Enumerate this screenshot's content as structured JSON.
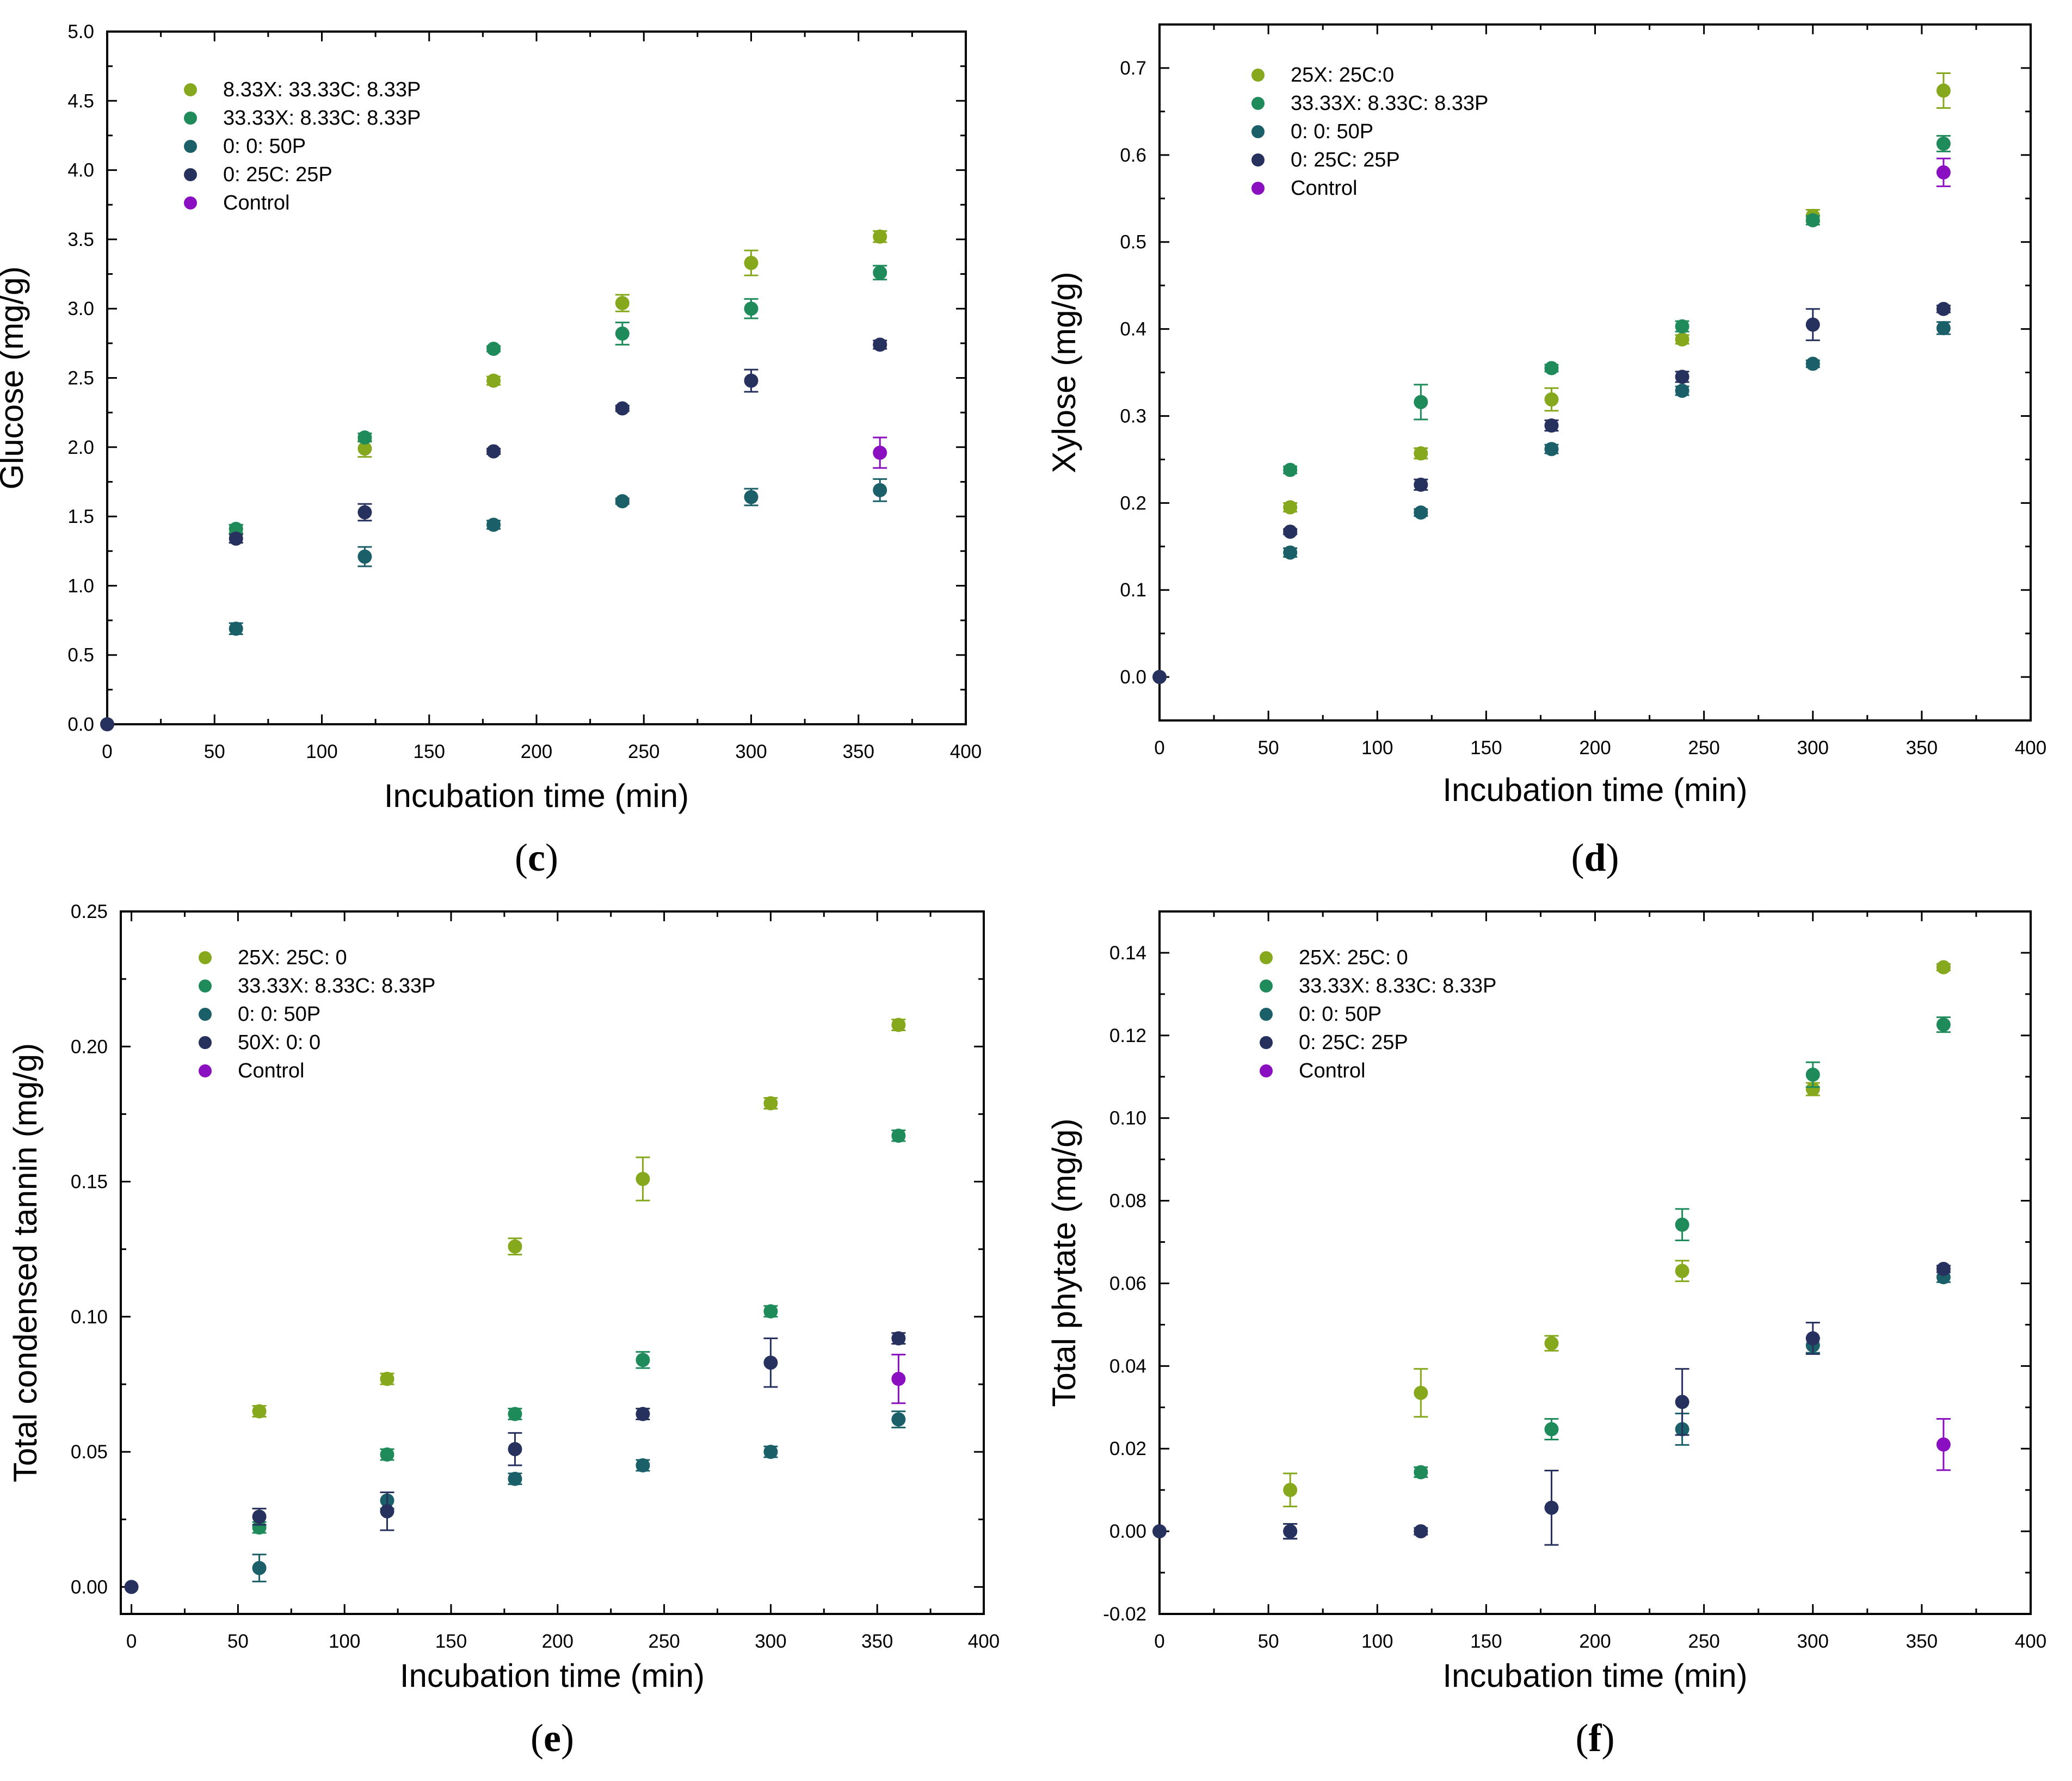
{
  "colors": {
    "series_yellowgreen": "#86a81c",
    "series_green": "#1f8a5a",
    "series_teal": "#1b5f69",
    "series_navy": "#27315e",
    "series_purple": "#8a0fc0"
  },
  "chart_data": [
    {
      "id": "c",
      "type": "scatter",
      "panel_label": "c",
      "xlabel": "Incubation time (min)",
      "ylabel": "Glucose (mg/g)",
      "xlim": [
        0,
        400
      ],
      "ylim": [
        0,
        5.0
      ],
      "xticks": [
        0,
        50,
        100,
        150,
        200,
        250,
        300,
        350,
        400
      ],
      "yticks": [
        0.0,
        0.5,
        1.0,
        1.5,
        2.0,
        2.5,
        3.0,
        3.5,
        4.0,
        4.5,
        5.0
      ],
      "xtick_labels": [
        "0",
        "50",
        "100",
        "150",
        "200",
        "250",
        "300",
        "350",
        "400"
      ],
      "ytick_labels": [
        "0.0",
        "0.5",
        "1.0",
        "1.5",
        "2.0",
        "2.5",
        "3.0",
        "3.5",
        "4.0",
        "4.5",
        "5.0"
      ],
      "legend_position": "top-left",
      "series": [
        {
          "name": "8.33X: 33.33C: 8.33P",
          "color": "#86a81c",
          "points": [
            [
              60,
              1.41,
              0.03
            ],
            [
              120,
              1.99,
              0.06
            ],
            [
              180,
              2.48,
              0.03
            ],
            [
              240,
              3.04,
              0.06
            ],
            [
              300,
              3.33,
              0.09
            ],
            [
              360,
              3.52,
              0.04
            ]
          ]
        },
        {
          "name": "33.33X: 8.33C: 8.33P",
          "color": "#1f8a5a",
          "points": [
            [
              60,
              1.41,
              0.03
            ],
            [
              120,
              2.07,
              0.03
            ],
            [
              180,
              2.71,
              0.02
            ],
            [
              240,
              2.82,
              0.08
            ],
            [
              300,
              3.0,
              0.07
            ],
            [
              360,
              3.26,
              0.05
            ]
          ]
        },
        {
          "name": "0: 0: 50P",
          "color": "#1b5f69",
          "points": [
            [
              60,
              0.69,
              0.04
            ],
            [
              120,
              1.21,
              0.07
            ],
            [
              180,
              1.44,
              0.03
            ],
            [
              240,
              1.61,
              0.02
            ],
            [
              300,
              1.64,
              0.06
            ],
            [
              360,
              1.69,
              0.08
            ]
          ]
        },
        {
          "name": "0: 25C: 25P",
          "color": "#27315e",
          "points": [
            [
              0,
              0.0,
              0.0
            ],
            [
              60,
              1.34,
              0.03
            ],
            [
              120,
              1.53,
              0.06
            ],
            [
              180,
              1.97,
              0.02
            ],
            [
              240,
              2.28,
              0.02
            ],
            [
              300,
              2.48,
              0.08
            ],
            [
              360,
              2.74,
              0.03
            ]
          ]
        },
        {
          "name": "Control",
          "color": "#8a0fc0",
          "points": [
            [
              360,
              1.96,
              0.11
            ]
          ]
        }
      ]
    },
    {
      "id": "d",
      "type": "scatter",
      "panel_label": "d",
      "xlabel": "Incubation time (min)",
      "ylabel": "Xylose (mg/g)",
      "xlim": [
        0,
        400
      ],
      "ylim": [
        -0.05,
        0.75
      ],
      "xticks": [
        0,
        50,
        100,
        150,
        200,
        250,
        300,
        350,
        400
      ],
      "yticks": [
        0.0,
        0.1,
        0.2,
        0.3,
        0.4,
        0.5,
        0.6,
        0.7
      ],
      "xtick_labels": [
        "0",
        "50",
        "100",
        "150",
        "200",
        "250",
        "300",
        "350",
        "400"
      ],
      "ytick_labels": [
        "0.0",
        "0.1",
        "0.2",
        "0.3",
        "0.4",
        "0.5",
        "0.6",
        "0.7"
      ],
      "legend_position": "top-left",
      "series": [
        {
          "name": "25X: 25C:0",
          "color": "#86a81c",
          "points": [
            [
              60,
              0.195,
              0.005
            ],
            [
              120,
              0.257,
              0.006
            ],
            [
              180,
              0.319,
              0.013
            ],
            [
              240,
              0.388,
              0.005
            ],
            [
              300,
              0.53,
              0.007
            ],
            [
              360,
              0.674,
              0.02
            ]
          ]
        },
        {
          "name": "33.33X: 8.33C: 8.33P",
          "color": "#1f8a5a",
          "points": [
            [
              60,
              0.238,
              0.004
            ],
            [
              120,
              0.316,
              0.02
            ],
            [
              180,
              0.355,
              0.004
            ],
            [
              240,
              0.403,
              0.006
            ],
            [
              300,
              0.525,
              0.005
            ],
            [
              360,
              0.613,
              0.009
            ]
          ]
        },
        {
          "name": "0: 0: 50P",
          "color": "#1b5f69",
          "points": [
            [
              60,
              0.143,
              0.005
            ],
            [
              120,
              0.189,
              0.004
            ],
            [
              180,
              0.262,
              0.005
            ],
            [
              240,
              0.329,
              0.005
            ],
            [
              300,
              0.36,
              0.004
            ],
            [
              360,
              0.401,
              0.007
            ]
          ]
        },
        {
          "name": "0: 25C: 25P",
          "color": "#27315e",
          "points": [
            [
              0,
              0.0,
              0.0
            ],
            [
              60,
              0.167,
              0.003
            ],
            [
              120,
              0.221,
              0.006
            ],
            [
              180,
              0.289,
              0.006
            ],
            [
              240,
              0.345,
              0.006
            ],
            [
              300,
              0.405,
              0.018
            ],
            [
              360,
              0.423,
              0.004
            ]
          ]
        },
        {
          "name": "Control",
          "color": "#8a0fc0",
          "points": [
            [
              360,
              0.58,
              0.016
            ]
          ]
        }
      ]
    },
    {
      "id": "e",
      "type": "scatter",
      "panel_label": "e",
      "xlabel": "Incubation time (min)",
      "ylabel": "Total condensed tannin (mg/g)",
      "xlim": [
        -5,
        400
      ],
      "ylim": [
        -0.01,
        0.25
      ],
      "xticks": [
        0,
        50,
        100,
        150,
        200,
        250,
        300,
        350,
        400
      ],
      "yticks": [
        0.0,
        0.05,
        0.1,
        0.15,
        0.2,
        0.25
      ],
      "xtick_labels": [
        "0",
        "50",
        "100",
        "150",
        "200",
        "250",
        "300",
        "350",
        "400"
      ],
      "ytick_labels": [
        "0.00",
        "0.05",
        "0.10",
        "0.15",
        "0.20",
        "0.25"
      ],
      "legend_position": "top-left",
      "series": [
        {
          "name": "25X: 25C: 0",
          "color": "#86a81c",
          "points": [
            [
              60,
              0.065,
              0.002
            ],
            [
              120,
              0.077,
              0.002
            ],
            [
              180,
              0.126,
              0.003
            ],
            [
              240,
              0.151,
              0.008
            ],
            [
              300,
              0.179,
              0.002
            ],
            [
              360,
              0.208,
              0.002
            ]
          ]
        },
        {
          "name": "33.33X: 8.33C: 8.33P",
          "color": "#1f8a5a",
          "points": [
            [
              60,
              0.022,
              0.002
            ],
            [
              120,
              0.049,
              0.002
            ],
            [
              180,
              0.064,
              0.002
            ],
            [
              240,
              0.084,
              0.003
            ],
            [
              300,
              0.102,
              0.002
            ],
            [
              360,
              0.167,
              0.002
            ]
          ]
        },
        {
          "name": "0: 0: 50P",
          "color": "#1b5f69",
          "points": [
            [
              60,
              0.007,
              0.005
            ],
            [
              120,
              0.032,
              0.003
            ],
            [
              180,
              0.04,
              0.002
            ],
            [
              240,
              0.045,
              0.002
            ],
            [
              300,
              0.05,
              0.002
            ],
            [
              360,
              0.062,
              0.003
            ]
          ]
        },
        {
          "name": "50X: 0: 0",
          "color": "#27315e",
          "points": [
            [
              0,
              0.0,
              0.0
            ],
            [
              60,
              0.026,
              0.003
            ],
            [
              120,
              0.028,
              0.007
            ],
            [
              180,
              0.051,
              0.006
            ],
            [
              240,
              0.064,
              0.002
            ],
            [
              300,
              0.083,
              0.009
            ],
            [
              360,
              0.092,
              0.002
            ]
          ]
        },
        {
          "name": "Control",
          "color": "#8a0fc0",
          "points": [
            [
              360,
              0.077,
              0.009
            ]
          ]
        }
      ]
    },
    {
      "id": "f",
      "type": "scatter",
      "panel_label": "f",
      "xlabel": "Incubation time (min)",
      "ylabel": "Total phytate (mg/g)",
      "xlim": [
        0,
        400
      ],
      "ylim": [
        -0.02,
        0.15
      ],
      "xticks": [
        0,
        50,
        100,
        150,
        200,
        250,
        300,
        350,
        400
      ],
      "yticks": [
        -0.02,
        0.0,
        0.02,
        0.04,
        0.06,
        0.08,
        0.1,
        0.12,
        0.14
      ],
      "xtick_labels": [
        "0",
        "50",
        "100",
        "150",
        "200",
        "250",
        "300",
        "350",
        "400"
      ],
      "ytick_labels": [
        "-0.02",
        "0.00",
        "0.02",
        "0.04",
        "0.06",
        "0.08",
        "0.10",
        "0.12",
        "0.14"
      ],
      "legend_position": "top-left",
      "series": [
        {
          "name": "25X: 25C: 0",
          "color": "#86a81c",
          "points": [
            [
              60,
              0.01,
              0.004
            ],
            [
              120,
              0.0335,
              0.0058
            ],
            [
              180,
              0.0455,
              0.0018
            ],
            [
              240,
              0.063,
              0.0025
            ],
            [
              300,
              0.107,
              0.0015
            ],
            [
              360,
              0.1365,
              0.0008
            ]
          ]
        },
        {
          "name": "33.33X: 8.33C: 8.33P",
          "color": "#1f8a5a",
          "points": [
            [
              120,
              0.0143,
              0.0012
            ],
            [
              180,
              0.0247,
              0.0025
            ],
            [
              240,
              0.0742,
              0.0038
            ],
            [
              300,
              0.1105,
              0.003
            ],
            [
              360,
              0.1226,
              0.0018
            ]
          ]
        },
        {
          "name": "0: 0: 50P",
          "color": "#1b5f69",
          "points": [
            [
              60,
              0.0,
              0.0018
            ],
            [
              240,
              0.0247,
              0.0038
            ],
            [
              300,
              0.045,
              0.0018
            ],
            [
              360,
              0.0615,
              0.0012
            ]
          ]
        },
        {
          "name": "0: 25C: 25P",
          "color": "#27315e",
          "points": [
            [
              0,
              0.0,
              0.0
            ],
            [
              60,
              0.0,
              0.0018
            ],
            [
              120,
              0.0,
              0.0008
            ],
            [
              180,
              0.0057,
              0.009
            ],
            [
              240,
              0.0313,
              0.008
            ],
            [
              300,
              0.0467,
              0.0038
            ],
            [
              360,
              0.0635,
              0.0008
            ]
          ]
        },
        {
          "name": "Control",
          "color": "#8a0fc0",
          "points": [
            [
              360,
              0.021,
              0.0062
            ]
          ]
        }
      ]
    }
  ]
}
